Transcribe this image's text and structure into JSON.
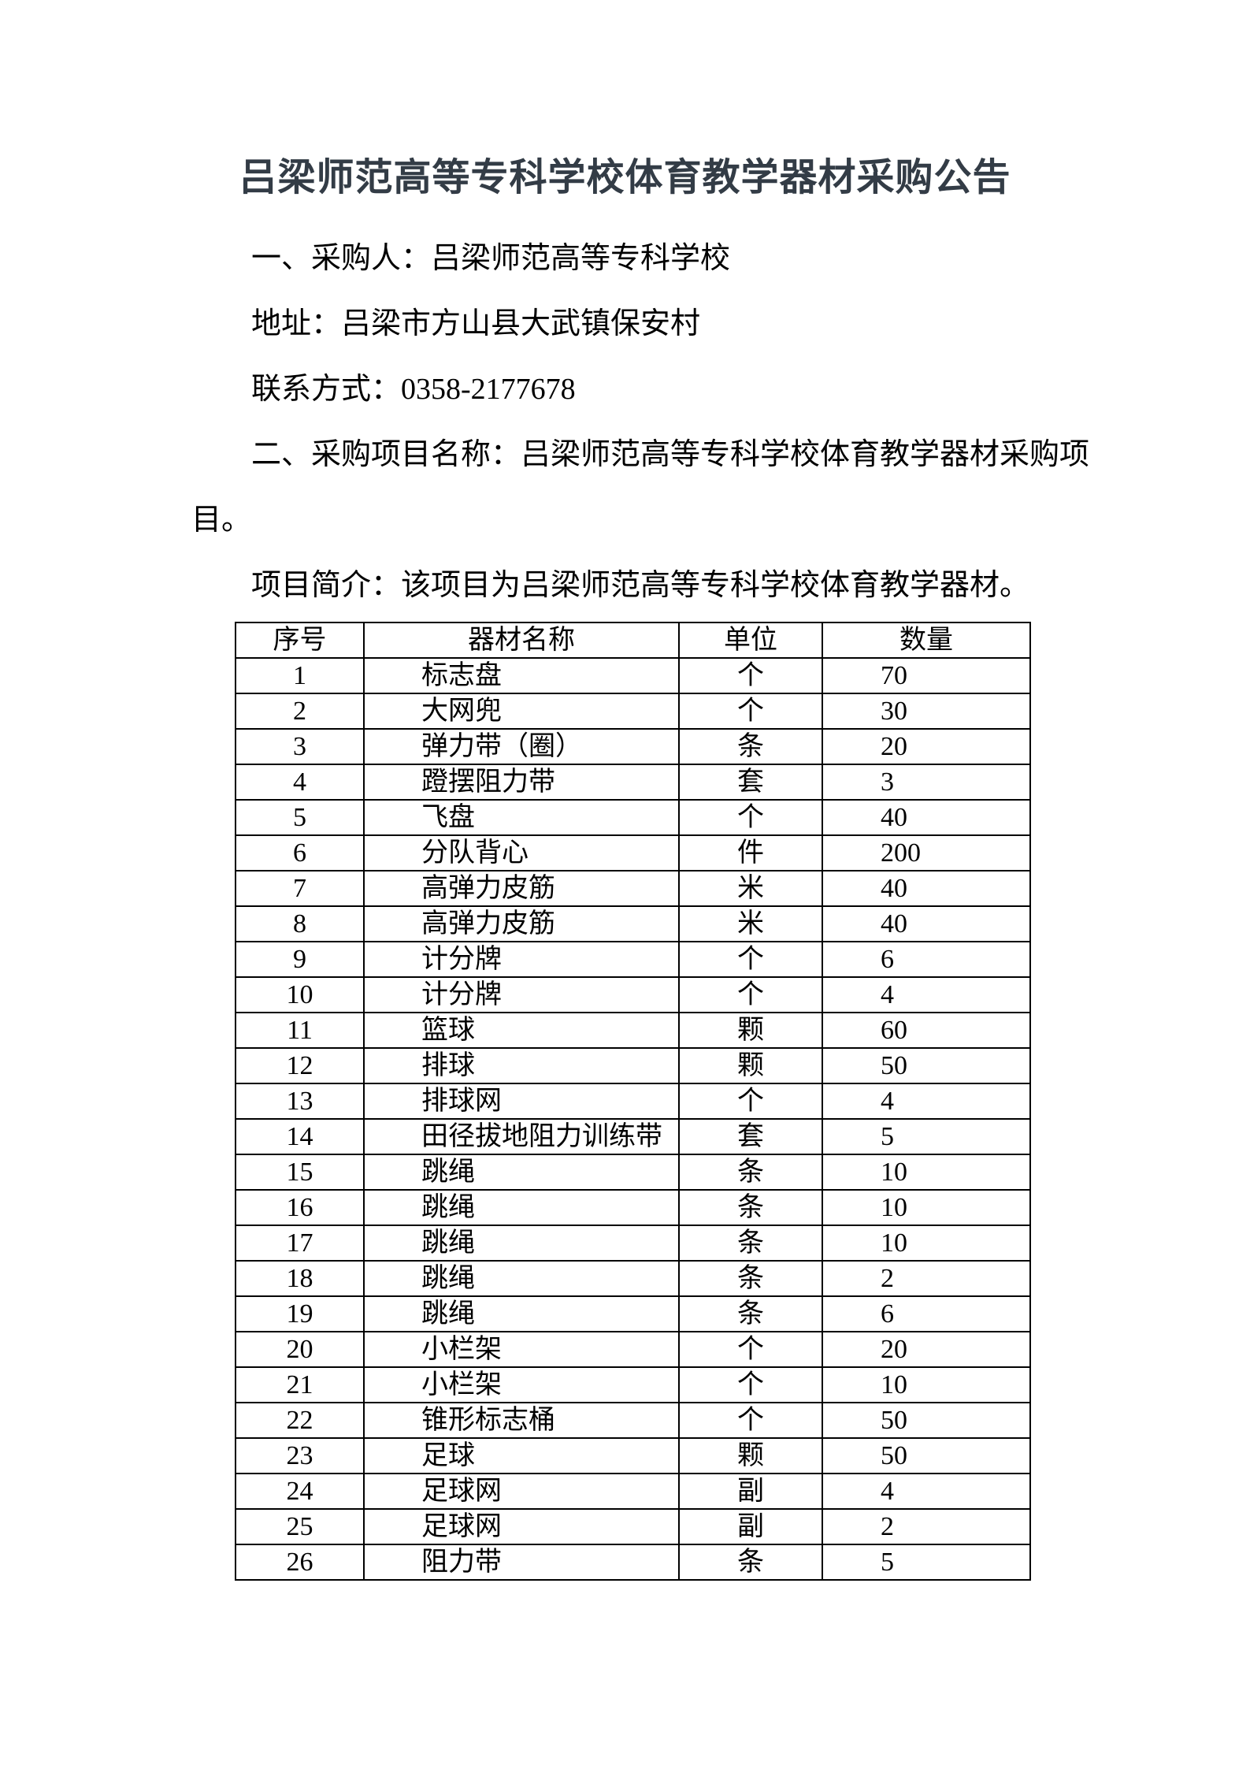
{
  "document": {
    "title": "吕梁师范高等专科学校体育教学器材采购公告",
    "paragraphs": [
      "一、采购人：吕梁师范高等专科学校",
      "地址：吕梁市方山县大武镇保安村",
      "联系方式：0358-2177678",
      "二、采购项目名称：吕梁师范高等专科学校体育教学器材采购项目。",
      "项目简介：该项目为吕梁师范高等专科学校体育教学器材。"
    ]
  },
  "table": {
    "headers": [
      "序号",
      "器材名称",
      "单位",
      "数量"
    ],
    "rows": [
      [
        "1",
        "标志盘",
        "个",
        "70"
      ],
      [
        "2",
        "大网兜",
        "个",
        "30"
      ],
      [
        "3",
        "弹力带（圈）",
        "条",
        "20"
      ],
      [
        "4",
        "蹬摆阻力带",
        "套",
        "3"
      ],
      [
        "5",
        "飞盘",
        "个",
        "40"
      ],
      [
        "6",
        "分队背心",
        "件",
        "200"
      ],
      [
        "7",
        "高弹力皮筋",
        "米",
        "40"
      ],
      [
        "8",
        "高弹力皮筋",
        "米",
        "40"
      ],
      [
        "9",
        "计分牌",
        "个",
        "6"
      ],
      [
        "10",
        "计分牌",
        "个",
        "4"
      ],
      [
        "11",
        "篮球",
        "颗",
        "60"
      ],
      [
        "12",
        "排球",
        "颗",
        "50"
      ],
      [
        "13",
        "排球网",
        "个",
        "4"
      ],
      [
        "14",
        "田径拔地阻力训练带",
        "套",
        "5"
      ],
      [
        "15",
        "跳绳",
        "条",
        "10"
      ],
      [
        "16",
        "跳绳",
        "条",
        "10"
      ],
      [
        "17",
        "跳绳",
        "条",
        "10"
      ],
      [
        "18",
        "跳绳",
        "条",
        "2"
      ],
      [
        "19",
        "跳绳",
        "条",
        "6"
      ],
      [
        "20",
        "小栏架",
        "个",
        "20"
      ],
      [
        "21",
        "小栏架",
        "个",
        "10"
      ],
      [
        "22",
        "锥形标志桶",
        "个",
        "50"
      ],
      [
        "23",
        "足球",
        "颗",
        "50"
      ],
      [
        "24",
        "足球网",
        "副",
        "4"
      ],
      [
        "25",
        "足球网",
        "副",
        "2"
      ],
      [
        "26",
        "阻力带",
        "条",
        "5"
      ]
    ]
  },
  "colors": {
    "page_background": "#ffffff",
    "title_text": "#333c46",
    "body_text": "#000000",
    "table_border": "#000000"
  }
}
